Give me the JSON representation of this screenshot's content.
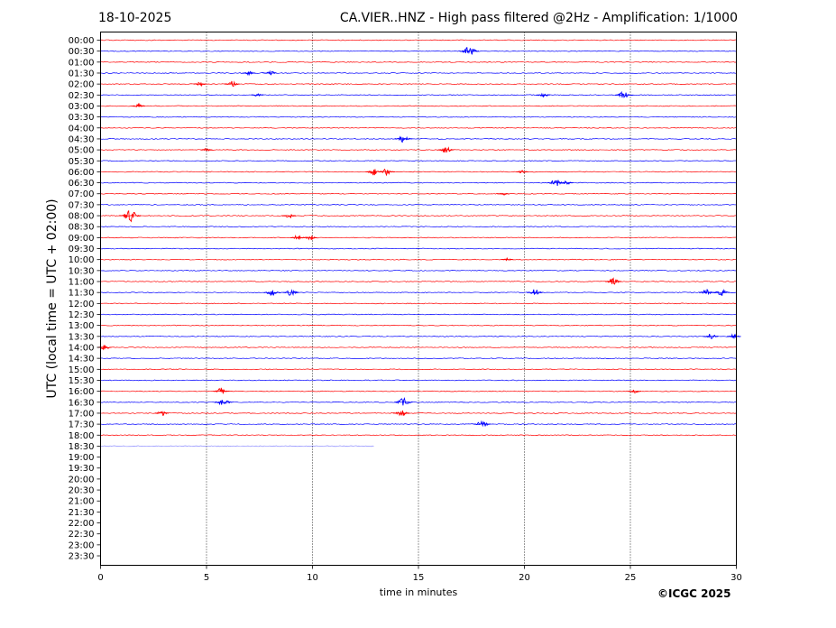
{
  "header": {
    "date": "18-10-2025",
    "title": "CA.VIER..HNZ - High pass filtered @2Hz - Amplification: 1/1000"
  },
  "credit": "©ICGC 2025",
  "colors": {
    "red_trace": "#ff0000",
    "blue_trace": "#0000ff",
    "grid": "#000000"
  },
  "chart_data": {
    "type": "line",
    "xlabel": "time in minutes",
    "ylabel": "UTC (local time = UTC + 02:00)",
    "xlim": [
      0,
      30
    ],
    "x_ticks": [
      0,
      5,
      10,
      15,
      20,
      25,
      30
    ],
    "y_tick_labels": [
      "00:00",
      "00:30",
      "01:00",
      "01:30",
      "02:00",
      "02:30",
      "03:00",
      "03:30",
      "04:00",
      "04:30",
      "05:00",
      "05:30",
      "06:00",
      "06:30",
      "07:00",
      "07:30",
      "08:00",
      "08:30",
      "09:00",
      "09:30",
      "10:00",
      "10:30",
      "11:00",
      "11:30",
      "12:00",
      "12:30",
      "13:00",
      "13:30",
      "14:00",
      "14:30",
      "15:00",
      "15:30",
      "16:00",
      "16:30",
      "17:00",
      "17:30",
      "18:00",
      "18:30",
      "19:00",
      "19:30",
      "20:00",
      "20:30",
      "21:00",
      "21:30",
      "22:00",
      "22:30",
      "23:00",
      "23:30"
    ],
    "vertical_grid_minutes": [
      5,
      10,
      15,
      20,
      25
    ],
    "trace_colors_alternate": [
      "red",
      "blue"
    ],
    "complete_traces": 37,
    "partial_trace": {
      "row": "18:30",
      "end_minute": 12.9
    },
    "events": [
      {
        "row": "00:30",
        "minute": 17.4,
        "amp": 1.0
      },
      {
        "row": "01:30",
        "minute": 7.0,
        "amp": 0.4
      },
      {
        "row": "01:30",
        "minute": 8.0,
        "amp": 0.5
      },
      {
        "row": "02:00",
        "minute": 4.7,
        "amp": 0.4
      },
      {
        "row": "02:00",
        "minute": 6.2,
        "amp": 0.6
      },
      {
        "row": "02:30",
        "minute": 7.4,
        "amp": 0.3
      },
      {
        "row": "02:30",
        "minute": 20.9,
        "amp": 0.5
      },
      {
        "row": "02:30",
        "minute": 24.7,
        "amp": 0.8
      },
      {
        "row": "03:00",
        "minute": 1.8,
        "amp": 0.4
      },
      {
        "row": "04:30",
        "minute": 14.3,
        "amp": 0.8
      },
      {
        "row": "05:00",
        "minute": 5.0,
        "amp": 0.3
      },
      {
        "row": "05:00",
        "minute": 16.3,
        "amp": 0.7
      },
      {
        "row": "06:00",
        "minute": 12.9,
        "amp": 0.7
      },
      {
        "row": "06:00",
        "minute": 13.5,
        "amp": 0.7
      },
      {
        "row": "06:00",
        "minute": 19.9,
        "amp": 0.3
      },
      {
        "row": "06:30",
        "minute": 21.5,
        "amp": 0.8
      },
      {
        "row": "06:30",
        "minute": 22.0,
        "amp": 0.4
      },
      {
        "row": "07:00",
        "minute": 19.0,
        "amp": 0.3
      },
      {
        "row": "08:00",
        "minute": 1.4,
        "amp": 1.2
      },
      {
        "row": "08:00",
        "minute": 8.9,
        "amp": 0.5
      },
      {
        "row": "09:00",
        "minute": 9.3,
        "amp": 0.5
      },
      {
        "row": "09:00",
        "minute": 9.9,
        "amp": 0.5
      },
      {
        "row": "10:00",
        "minute": 19.2,
        "amp": 0.3
      },
      {
        "row": "11:00",
        "minute": 24.2,
        "amp": 0.7
      },
      {
        "row": "11:30",
        "minute": 8.1,
        "amp": 0.7
      },
      {
        "row": "11:30",
        "minute": 9.0,
        "amp": 0.7
      },
      {
        "row": "11:30",
        "minute": 20.5,
        "amp": 0.7
      },
      {
        "row": "11:30",
        "minute": 28.6,
        "amp": 0.6
      },
      {
        "row": "11:30",
        "minute": 29.3,
        "amp": 0.7
      },
      {
        "row": "13:30",
        "minute": 28.8,
        "amp": 0.6
      },
      {
        "row": "13:30",
        "minute": 29.9,
        "amp": 0.5
      },
      {
        "row": "14:00",
        "minute": 0.2,
        "amp": 0.5
      },
      {
        "row": "16:00",
        "minute": 5.7,
        "amp": 0.7
      },
      {
        "row": "16:00",
        "minute": 25.2,
        "amp": 0.4
      },
      {
        "row": "16:30",
        "minute": 5.8,
        "amp": 0.8
      },
      {
        "row": "16:30",
        "minute": 14.3,
        "amp": 0.9
      },
      {
        "row": "17:00",
        "minute": 2.9,
        "amp": 0.5
      },
      {
        "row": "17:00",
        "minute": 14.2,
        "amp": 0.7
      },
      {
        "row": "17:30",
        "minute": 18.0,
        "amp": 0.8
      }
    ]
  }
}
